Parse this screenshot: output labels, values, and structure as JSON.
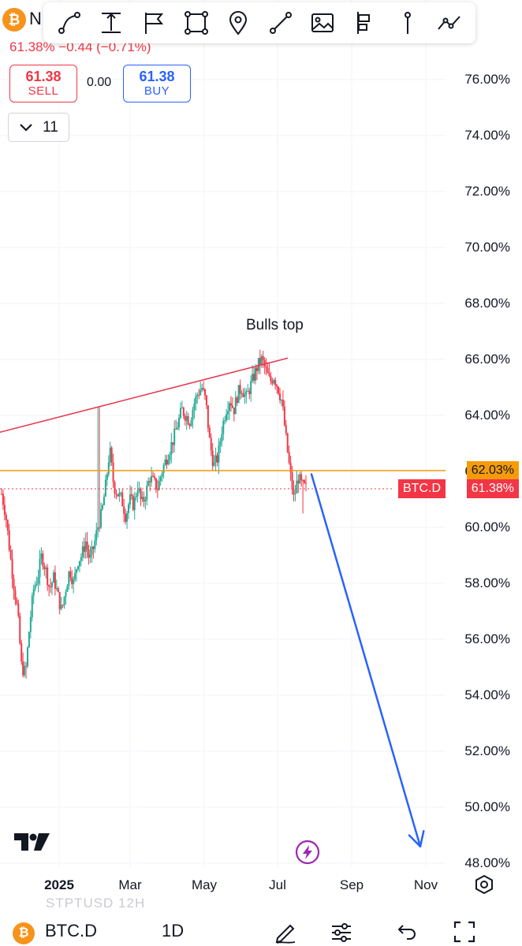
{
  "header": {
    "coin_glyph": "₿",
    "symbol_fragment": "N",
    "quote_line": "61.38%  −0.44  (−0.71%)",
    "sell": {
      "price": "61.38",
      "label": "SELL"
    },
    "spread": "0.00",
    "buy": {
      "price": "61.38",
      "label": "BUY"
    },
    "collapse_count": "11"
  },
  "toolbar": {
    "tools": [
      "curve-icon",
      "price-range-icon",
      "flag-icon",
      "rectangle-icon",
      "pin-icon",
      "trend-line-icon",
      "image-icon",
      "long-position-icon",
      "vertical-line-icon",
      "path-icon"
    ]
  },
  "price_axis": {
    "labels": [
      "76.00%",
      "74.00%",
      "72.00%",
      "70.00%",
      "68.00%",
      "66.00%",
      "64.00%",
      "62.00%",
      "60.00%",
      "58.00%",
      "56.00%",
      "54.00%",
      "52.00%",
      "50.00%",
      "48.00%"
    ]
  },
  "time_axis": {
    "labels": [
      "2025",
      "Mar",
      "May",
      "Jul",
      "Sep",
      "Nov"
    ]
  },
  "price_tags": {
    "level_value": "62.03%",
    "symbol_label": "BTC.D",
    "last_value": "61.38%"
  },
  "annotation": {
    "text": "Bulls top"
  },
  "bottom_bar": {
    "ghost_text": "STPTUSD   12H",
    "coin_glyph": "₿",
    "symbol": "BTC.D",
    "interval": "1D"
  },
  "colors": {
    "up": "#22ab94",
    "down": "#f23645",
    "accent_blue": "#2962ff",
    "level_orange": "#f59b0b",
    "trend_red": "#e8384f"
  },
  "chart_data": {
    "type": "candlestick",
    "symbol": "BTC.D",
    "interval": "1D",
    "last_price": 61.38,
    "change": -0.44,
    "change_pct": -0.71,
    "ylim": [
      48,
      77
    ],
    "y_ticks": [
      76,
      74,
      72,
      70,
      68,
      66,
      64,
      62,
      60,
      58,
      56,
      54,
      52,
      50,
      48
    ],
    "x_ticks": [
      "2025",
      "Mar",
      "May",
      "Jul",
      "Sep",
      "Nov"
    ],
    "horizontal_level": 62.03,
    "trendline": {
      "from": 63.4,
      "to": 66.05
    },
    "projection_arrow": {
      "from": 61.9,
      "to": 48.6
    },
    "close_path": [
      61.2,
      60.5,
      59.2,
      58.0,
      57.0,
      55.0,
      54.8,
      56.5,
      57.8,
      58.2,
      59.0,
      58.5,
      57.8,
      58.2,
      57.6,
      57.0,
      57.8,
      58.5,
      58.0,
      58.8,
      59.0,
      59.5,
      58.8,
      59.3,
      60.0,
      60.5,
      61.5,
      62.8,
      61.5,
      61.2,
      61.0,
      60.4,
      61.0,
      60.8,
      61.5,
      60.8,
      61.2,
      61.8,
      61.6,
      61.4,
      62.0,
      62.4,
      62.8,
      63.2,
      63.7,
      64.2,
      64.0,
      63.8,
      64.4,
      64.8,
      65.0,
      64.5,
      63.0,
      62.2,
      62.5,
      63.5,
      64.2,
      64.6,
      64.2,
      64.8,
      65.0,
      64.6,
      65.0,
      65.4,
      65.8,
      66.0,
      65.6,
      65.2,
      65.4,
      65.0,
      64.5,
      63.2,
      62.0,
      61.0,
      61.8,
      61.5,
      61.4
    ],
    "wick_extremes": {
      "early_low": 54.6,
      "feb_spike_high": 64.3,
      "apr_high": 65.4,
      "may_low": 61.9,
      "jun_high": 66.0,
      "jul_low": 60.5
    }
  }
}
